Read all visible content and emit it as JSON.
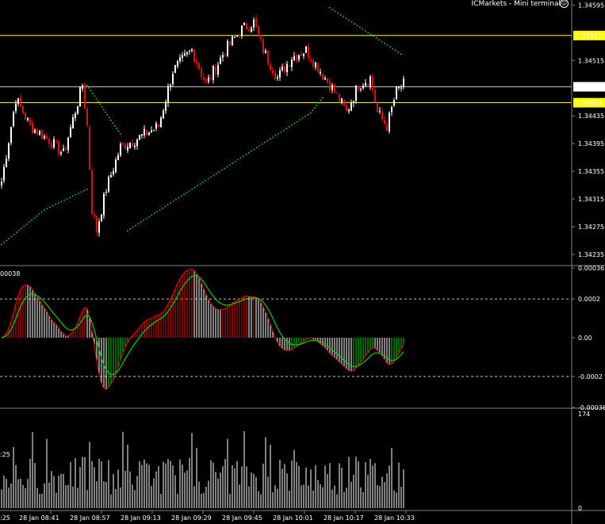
{
  "header": {
    "title": "ICMarkets - Mini terminal",
    "smiley": "☺"
  },
  "colors": {
    "background": "#000000",
    "bull": "#ffffff",
    "bear": "#e01010",
    "dots": "#22dd22",
    "level": "#ffff00",
    "price_line": "#c0c0c0",
    "macd_line": "#00d000",
    "macd_signal": "#e01010"
  },
  "chart_data": [
    {
      "type": "candlestick",
      "ylim": [
        1.3422,
        1.346
      ],
      "yticks": [
        "1.34595",
        "1.34515",
        "1.34435",
        "1.34395",
        "1.34355",
        "1.34315",
        "1.34275",
        "1.34235"
      ],
      "levels": [
        {
          "label": "1.34551",
          "value": 1.34551
        },
        {
          "label": "1.34454",
          "value": 1.34454
        }
      ],
      "current_price": {
        "label": "1.34477",
        "value": 1.34477
      },
      "trend_dots": [
        {
          "name": "dots-1",
          "points": [
            [
              0,
              1.3425
            ],
            [
              18,
              1.343
            ],
            [
              36,
              1.3433
            ]
          ]
        },
        {
          "name": "dots-2",
          "points": [
            [
              36,
              1.3448
            ],
            [
              50,
              1.3441
            ]
          ]
        },
        {
          "name": "dots-3",
          "points": [
            [
              53,
              1.3427
            ],
            [
              130,
              1.3444
            ],
            [
              135,
              1.34462
            ]
          ]
        },
        {
          "name": "dots-4",
          "points": [
            [
              138,
              1.34592
            ],
            [
              168,
              1.34525
            ]
          ]
        }
      ]
    },
    {
      "type": "histogram",
      "name": "MACD",
      "ylim": [
        -0.00036,
        0.00036
      ],
      "yticks": [
        "0.00036",
        "0.0002",
        "0.00",
        "-0.0002",
        "-0.00036"
      ],
      "left_label": "00038",
      "dashed_levels": [
        0.0002,
        -0.0002
      ]
    },
    {
      "type": "bar",
      "name": "Volume",
      "ylim": [
        0,
        174
      ],
      "yticks": [
        "174",
        "0"
      ],
      "left_label": ":25",
      "xticks": [
        "28 Jan 08:41",
        "28 Jan 08:57",
        "28 Jan 09:13",
        "28 Jan 09:29",
        "28 Jan 09:45",
        "28 Jan 10:01",
        "28 Jan 10:17",
        "28 Jan 10:33"
      ]
    }
  ]
}
